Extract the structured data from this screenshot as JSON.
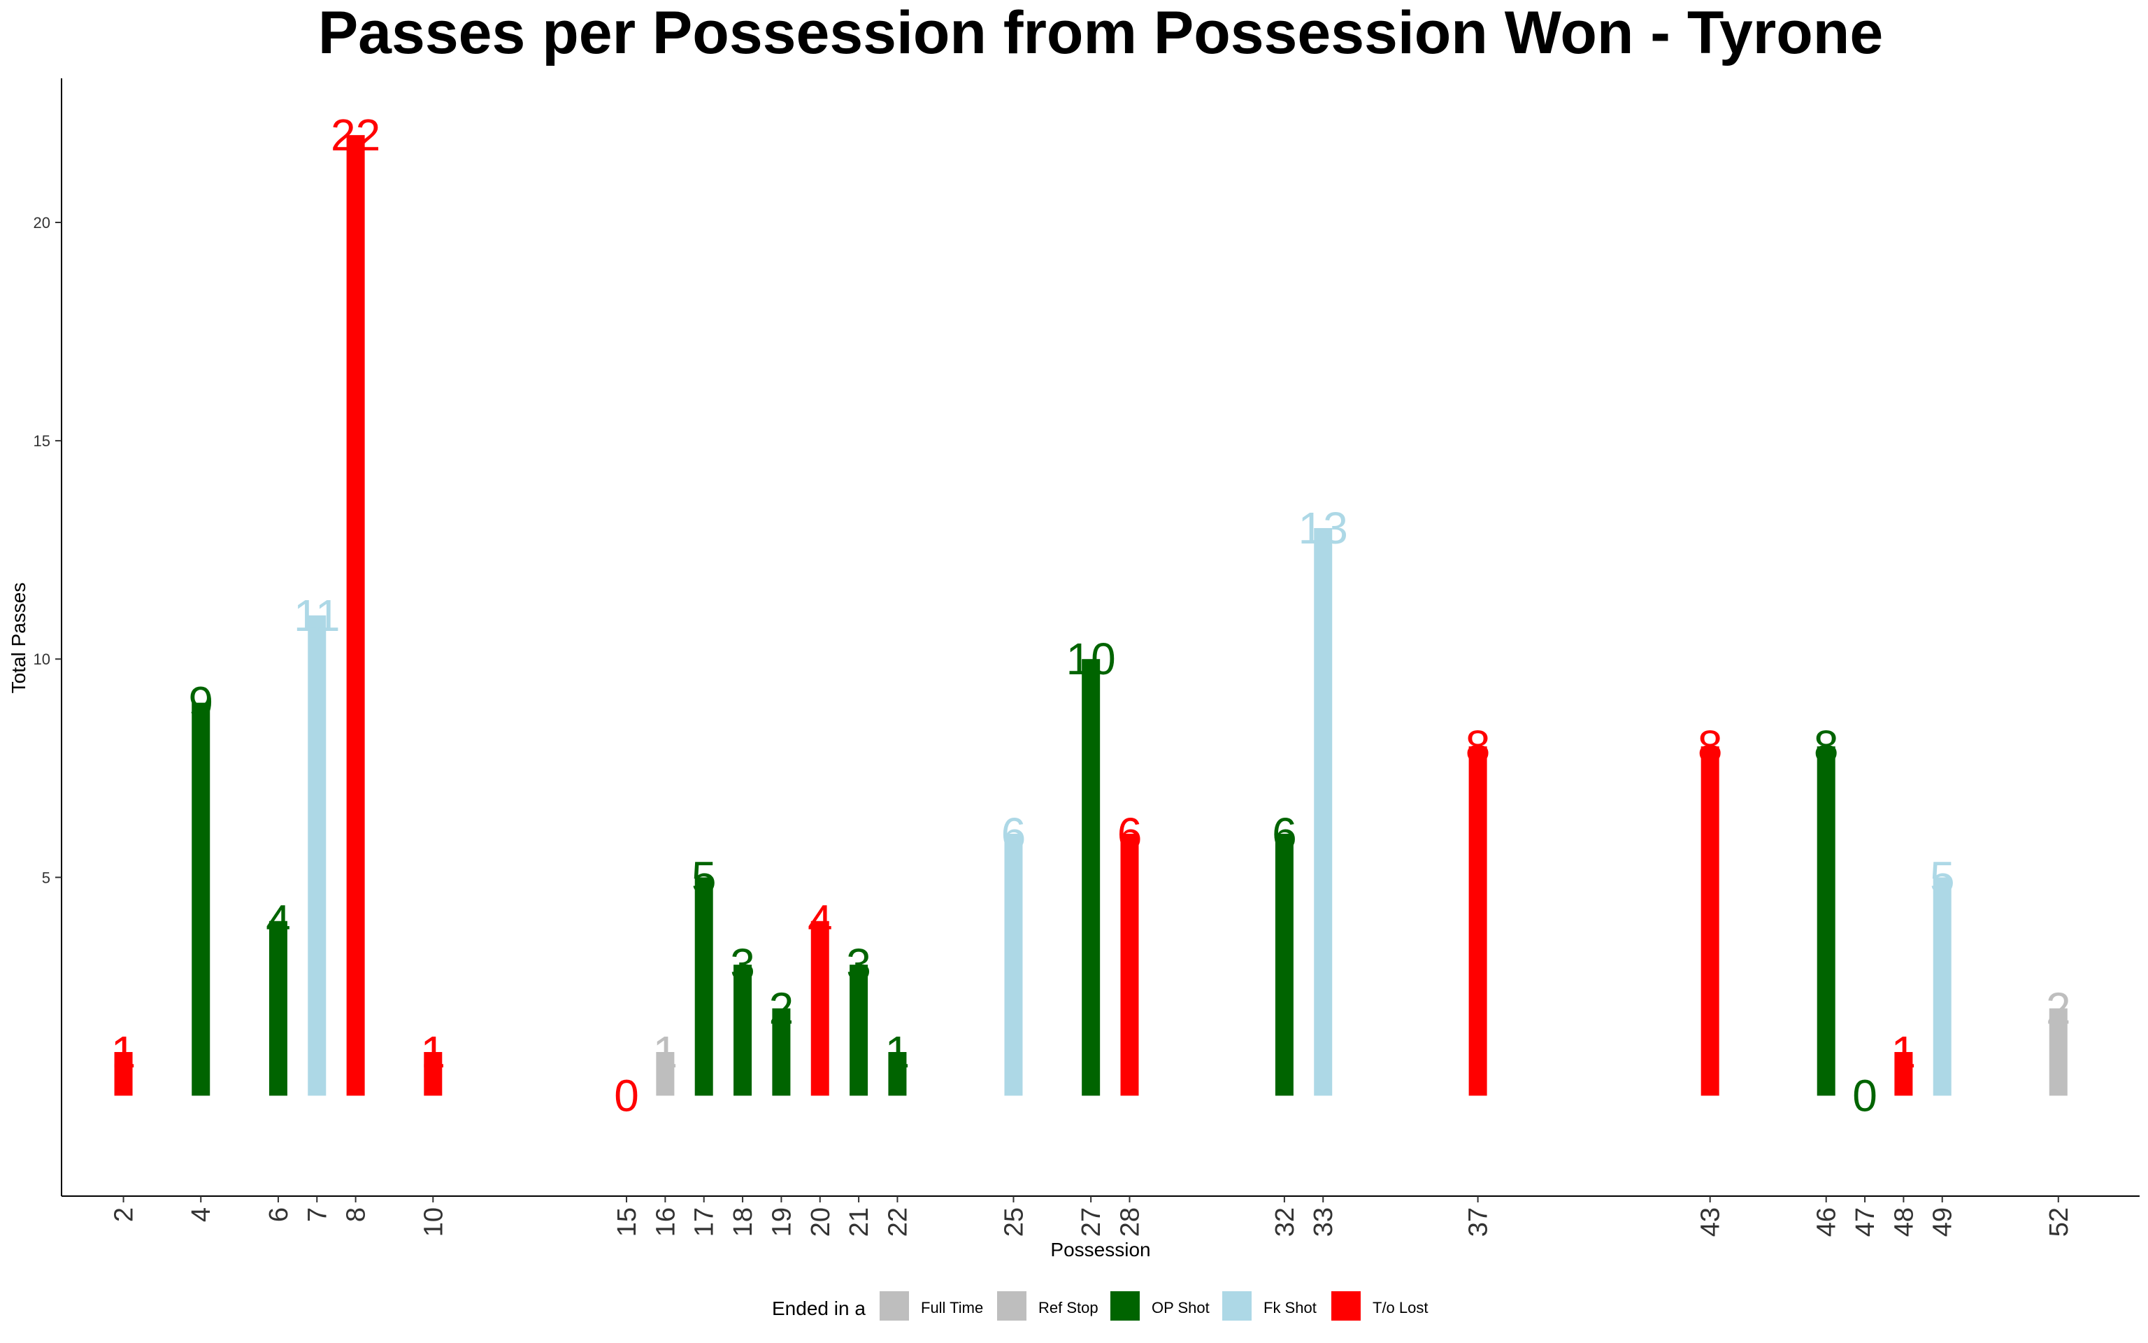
{
  "chart_data": {
    "type": "bar",
    "title": "Passes per Possession from Possession Won - Tyrone",
    "xlabel": "Possession",
    "ylabel": "Total Passes",
    "ylim": [
      -2.3,
      23.3
    ],
    "xlim": [
      0.4,
      54.1
    ],
    "y_ticks": [
      5,
      10,
      15,
      20
    ],
    "grid": false,
    "legend": {
      "placement": "bottom",
      "title": "Ended in a",
      "entries": [
        {
          "key": "full_time",
          "label": "Full Time",
          "color": "#BEBEBE"
        },
        {
          "key": "ref_stop",
          "label": "Ref Stop",
          "color": "#BEBEBE"
        },
        {
          "key": "op_shot",
          "label": "OP Shot",
          "color": "#006400"
        },
        {
          "key": "fk_shot",
          "label": "Fk Shot",
          "color": "#ADD8E6"
        },
        {
          "key": "to_lost",
          "label": "T/o Lost",
          "color": "#FF0000"
        }
      ]
    },
    "bars": [
      {
        "x": "2",
        "pos": 2,
        "value": 1,
        "outcome": "to_lost"
      },
      {
        "x": "4",
        "pos": 4,
        "value": 9,
        "outcome": "op_shot"
      },
      {
        "x": "6",
        "pos": 6,
        "value": 4,
        "outcome": "op_shot"
      },
      {
        "x": "7",
        "pos": 7,
        "value": 11,
        "outcome": "fk_shot"
      },
      {
        "x": "8",
        "pos": 8,
        "value": 22,
        "outcome": "to_lost"
      },
      {
        "x": "10",
        "pos": 10,
        "value": 1,
        "outcome": "to_lost"
      },
      {
        "x": "15",
        "pos": 15,
        "value": 0,
        "outcome": "to_lost"
      },
      {
        "x": "16",
        "pos": 16,
        "value": 1,
        "outcome": "ref_stop"
      },
      {
        "x": "17",
        "pos": 17,
        "value": 5,
        "outcome": "op_shot"
      },
      {
        "x": "18",
        "pos": 18,
        "value": 3,
        "outcome": "op_shot"
      },
      {
        "x": "19",
        "pos": 19,
        "value": 2,
        "outcome": "op_shot"
      },
      {
        "x": "20",
        "pos": 20,
        "value": 4,
        "outcome": "to_lost"
      },
      {
        "x": "21",
        "pos": 21,
        "value": 3,
        "outcome": "op_shot"
      },
      {
        "x": "22",
        "pos": 22,
        "value": 1,
        "outcome": "op_shot"
      },
      {
        "x": "25",
        "pos": 25,
        "value": 6,
        "outcome": "fk_shot"
      },
      {
        "x": "27",
        "pos": 27,
        "value": 10,
        "outcome": "op_shot"
      },
      {
        "x": "28",
        "pos": 28,
        "value": 6,
        "outcome": "to_lost"
      },
      {
        "x": "32",
        "pos": 32,
        "value": 6,
        "outcome": "op_shot"
      },
      {
        "x": "33",
        "pos": 33,
        "value": 13,
        "outcome": "fk_shot"
      },
      {
        "x": "37",
        "pos": 37,
        "value": 8,
        "outcome": "to_lost"
      },
      {
        "x": "43",
        "pos": 43,
        "value": 8,
        "outcome": "to_lost"
      },
      {
        "x": "46",
        "pos": 46,
        "value": 8,
        "outcome": "op_shot"
      },
      {
        "x": "47",
        "pos": 47,
        "value": 0,
        "outcome": "op_shot"
      },
      {
        "x": "48",
        "pos": 48,
        "value": 1,
        "outcome": "to_lost"
      },
      {
        "x": "49",
        "pos": 49,
        "value": 5,
        "outcome": "fk_shot"
      },
      {
        "x": "52",
        "pos": 52,
        "value": 2,
        "outcome": "full_time"
      }
    ]
  }
}
